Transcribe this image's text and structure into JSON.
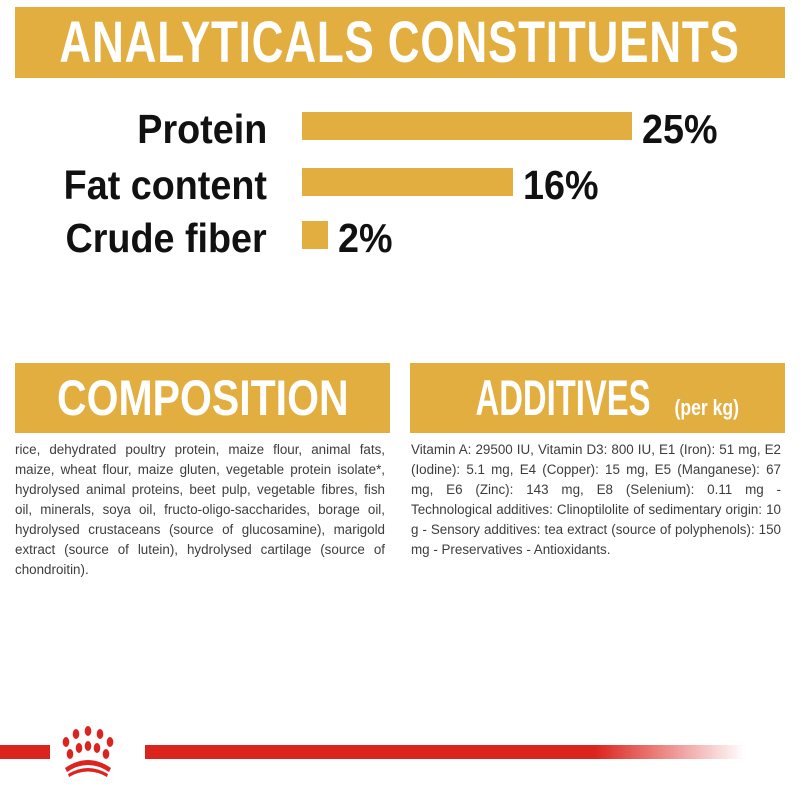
{
  "analytical": {
    "title": "ANALYTICALS CONSTITUENTS",
    "rows": [
      {
        "label": "Protein",
        "value": "25%",
        "percent": 25
      },
      {
        "label": "Fat content",
        "value": "16%",
        "percent": 16
      },
      {
        "label": "Crude fiber",
        "value": "2%",
        "percent": 2
      }
    ]
  },
  "composition": {
    "title": "COMPOSITION",
    "text": "rice, dehydrated poultry protein, maize flour, animal fats, maize, wheat flour, maize gluten, vegetable protein isolate*, hydrolysed animal proteins, beet pulp, vegetable fibres, fish oil, minerals, soya oil, fructo-oligo-saccharides, borage oil, hydrolysed crustaceans (source of glucosamine), marigold extract (source of lutein), hydrolysed cartilage (source of chondroitin)."
  },
  "additives": {
    "title": "ADDITIVES",
    "subtitle": "(per kg)",
    "text": "Vitamin A: 29500 IU, Vitamin D3: 800 IU, E1 (Iron): 51 mg, E2 (Iodine): 5.1 mg, E4 (Copper): 15 mg, E5 (Manganese): 67 mg, E6 (Zinc): 143 mg, E8 (Selenium): 0.11 mg - Technological additives: Clinoptilolite of sedimentary origin: 10 g - Sensory additives: tea extract (source of polyphenols): 150 mg - Preservatives - Antioxidants."
  },
  "footer": {
    "logo": "royal-canin-crown-logo"
  },
  "colors": {
    "accent": "#e2ae3f",
    "brand_red": "#dc241f",
    "text": "#3d3d3d"
  }
}
